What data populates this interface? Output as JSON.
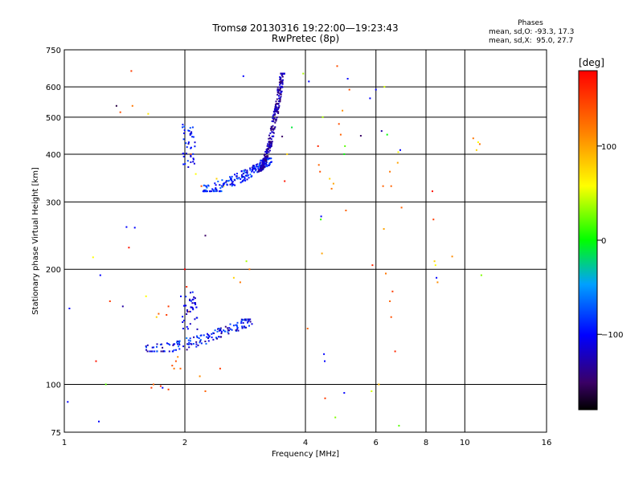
{
  "header": {
    "title": "Tromsø 20130316 19:22:00—19:23:43",
    "subtitle": "RwPretec (8p)",
    "phases_title": "Phases",
    "stats_o": "mean, sd,O: -93.3, 17.3",
    "stats_x": "mean, sd,X:  95.0, 27.7"
  },
  "colorbar": {
    "label": "[deg]",
    "range": [
      -180,
      180
    ],
    "ticks": [
      {
        "value": 100,
        "label": "100"
      },
      {
        "value": 0,
        "label": "0"
      },
      {
        "value": -100,
        "label": "−100"
      }
    ]
  },
  "chart_data": {
    "type": "scatter",
    "title": "Tromsø 20130316 19:22:00—19:23:43",
    "subtitle": "RwPretec (8p)",
    "xlabel": "Frequency [MHz]",
    "ylabel": "Stationary phase Virtual Height [km]",
    "x_scale": "log",
    "y_scale": "log",
    "xlim": [
      1,
      16
    ],
    "ylim": [
      75,
      750
    ],
    "x_ticks": [
      {
        "value": 1,
        "label": "1"
      },
      {
        "value": 2,
        "label": "2"
      },
      {
        "value": 4,
        "label": "4"
      },
      {
        "value": 6,
        "label": "6"
      },
      {
        "value": 8,
        "label": "8"
      },
      {
        "value": 10,
        "label": "10"
      },
      {
        "value": 16,
        "label": "16"
      }
    ],
    "y_ticks": [
      {
        "value": 75,
        "label": "75"
      },
      {
        "value": 100,
        "label": "100"
      },
      {
        "value": 200,
        "label": "200"
      },
      {
        "value": 300,
        "label": "300"
      },
      {
        "value": 400,
        "label": "400"
      },
      {
        "value": 500,
        "label": "500"
      },
      {
        "value": 600,
        "label": "600"
      },
      {
        "value": 750,
        "label": "750"
      }
    ],
    "grid_x": [
      2,
      4,
      6,
      8,
      10
    ],
    "grid_y": [
      100,
      200,
      300,
      400,
      500,
      600
    ],
    "grid": true,
    "color_by": "phase [deg]",
    "points_columns": [
      "frequency_MHz",
      "height_km",
      "phase_deg"
    ],
    "points": [
      [
        1.02,
        90,
        -100
      ],
      [
        1.03,
        158,
        -100
      ],
      [
        1.2,
        115,
        170
      ],
      [
        1.22,
        80,
        -100
      ],
      [
        1.18,
        215,
        60
      ],
      [
        1.23,
        193,
        -100
      ],
      [
        1.27,
        100,
        20
      ],
      [
        1.3,
        165,
        150
      ],
      [
        1.35,
        535,
        -160
      ],
      [
        1.38,
        515,
        140
      ],
      [
        1.4,
        160,
        -130
      ],
      [
        1.43,
        258,
        -100
      ],
      [
        1.45,
        228,
        170
      ],
      [
        1.47,
        660,
        150
      ],
      [
        1.48,
        535,
        120
      ],
      [
        1.5,
        257,
        -100
      ],
      [
        1.6,
        170,
        60
      ],
      [
        1.62,
        510,
        70
      ],
      [
        1.65,
        98,
        150
      ],
      [
        1.67,
        100,
        130
      ],
      [
        1.7,
        150,
        80
      ],
      [
        1.72,
        153,
        130
      ],
      [
        1.74,
        99,
        160
      ],
      [
        1.76,
        98,
        -100
      ],
      [
        1.8,
        152,
        150
      ],
      [
        1.82,
        160,
        150
      ],
      [
        1.82,
        97,
        150
      ],
      [
        1.86,
        112,
        140
      ],
      [
        1.88,
        110,
        120
      ],
      [
        1.9,
        115,
        140
      ],
      [
        1.92,
        118,
        110
      ],
      [
        1.95,
        110,
        130
      ],
      [
        2.0,
        200,
        180
      ],
      [
        2.02,
        180,
        160
      ],
      [
        2.05,
        155,
        130
      ],
      [
        2.07,
        400,
        130
      ],
      [
        2.13,
        355,
        60
      ],
      [
        2.18,
        105,
        110
      ],
      [
        2.2,
        330,
        140
      ],
      [
        2.25,
        245,
        -150
      ],
      [
        2.25,
        96,
        130
      ],
      [
        2.4,
        345,
        80
      ],
      [
        2.45,
        110,
        150
      ],
      [
        2.5,
        330,
        60
      ],
      [
        2.55,
        340,
        90
      ],
      [
        2.65,
        190,
        80
      ],
      [
        2.7,
        350,
        130
      ],
      [
        2.75,
        185,
        120
      ],
      [
        2.8,
        640,
        -100
      ],
      [
        2.85,
        210,
        40
      ],
      [
        2.9,
        200,
        120
      ],
      [
        3.5,
        445,
        -150
      ],
      [
        3.55,
        340,
        170
      ],
      [
        3.6,
        400,
        80
      ],
      [
        3.7,
        470,
        -10
      ],
      [
        3.95,
        650,
        40
      ],
      [
        4.05,
        140,
        130
      ],
      [
        4.08,
        620,
        -100
      ],
      [
        4.3,
        420,
        160
      ],
      [
        4.32,
        375,
        130
      ],
      [
        4.35,
        360,
        140
      ],
      [
        4.37,
        270,
        10
      ],
      [
        4.38,
        275,
        -100
      ],
      [
        4.4,
        220,
        100
      ],
      [
        4.42,
        500,
        40
      ],
      [
        4.45,
        120,
        -100
      ],
      [
        4.47,
        115,
        -100
      ],
      [
        4.48,
        92,
        150
      ],
      [
        4.6,
        345,
        80
      ],
      [
        4.65,
        325,
        120
      ],
      [
        4.7,
        335,
        100
      ],
      [
        4.75,
        82,
        30
      ],
      [
        4.8,
        680,
        140
      ],
      [
        4.85,
        480,
        140
      ],
      [
        4.9,
        450,
        130
      ],
      [
        4.95,
        520,
        110
      ],
      [
        5.0,
        400,
        0
      ],
      [
        5.02,
        420,
        20
      ],
      [
        5.05,
        285,
        130
      ],
      [
        5.1,
        630,
        -100
      ],
      [
        5.15,
        590,
        140
      ],
      [
        5.0,
        95,
        -100
      ],
      [
        5.5,
        447,
        -150
      ],
      [
        5.8,
        560,
        -100
      ],
      [
        5.85,
        96,
        50
      ],
      [
        5.88,
        205,
        160
      ],
      [
        6.0,
        590,
        -100
      ],
      [
        6.1,
        100,
        90
      ],
      [
        6.2,
        460,
        -130
      ],
      [
        6.25,
        330,
        130
      ],
      [
        6.3,
        600,
        50
      ],
      [
        6.28,
        255,
        100
      ],
      [
        6.35,
        195,
        120
      ],
      [
        6.4,
        450,
        0
      ],
      [
        6.5,
        360,
        120
      ],
      [
        6.55,
        330,
        130
      ],
      [
        6.6,
        175,
        150
      ],
      [
        6.7,
        122,
        160
      ],
      [
        6.8,
        380,
        100
      ],
      [
        6.82,
        405,
        60
      ],
      [
        6.85,
        78,
        20
      ],
      [
        6.9,
        410,
        -100
      ],
      [
        6.95,
        290,
        130
      ],
      [
        6.5,
        165,
        130
      ],
      [
        6.55,
        150,
        140
      ],
      [
        8.3,
        320,
        170
      ],
      [
        8.35,
        270,
        150
      ],
      [
        8.4,
        210,
        80
      ],
      [
        8.45,
        205,
        60
      ],
      [
        8.5,
        190,
        -100
      ],
      [
        8.55,
        185,
        110
      ],
      [
        9.3,
        216,
        110
      ],
      [
        10.5,
        440,
        120
      ],
      [
        10.7,
        410,
        80
      ],
      [
        10.8,
        430,
        60
      ],
      [
        10.9,
        425,
        120
      ],
      [
        11.0,
        193,
        30
      ]
    ],
    "clusters": [
      {
        "freq_range": [
          1.6,
          2.95
        ],
        "height": [
          122,
          148
        ],
        "phase": [
          -140,
          -60
        ],
        "count": 160,
        "trend": "rising"
      },
      {
        "freq_range": [
          1.95,
          2.15
        ],
        "height": [
          138,
          175
        ],
        "phase": [
          -130,
          -80
        ],
        "count": 40,
        "trend": "scatter"
      },
      {
        "freq_range": [
          1.97,
          2.12
        ],
        "height": [
          370,
          480
        ],
        "phase": [
          -120,
          -70
        ],
        "count": 40,
        "trend": "scatter"
      },
      {
        "freq_range": [
          2.22,
          3.3
        ],
        "height": [
          320,
          390
        ],
        "phase": [
          -120,
          -60
        ],
        "count": 200,
        "trend": "rising"
      },
      {
        "freq_range": [
          3.05,
          3.55
        ],
        "height": [
          360,
          650
        ],
        "phase": [
          -150,
          -105
        ],
        "count": 280,
        "trend": "steep"
      }
    ]
  }
}
